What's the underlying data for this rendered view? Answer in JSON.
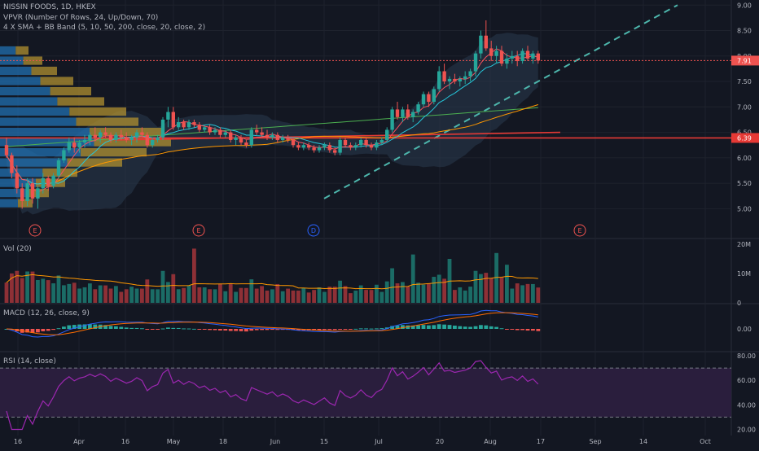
{
  "header": {
    "symbol_line": "NISSIN FOODS, 1D, HKEX",
    "vpvr_line": "VPVR (Number Of Rows, 24, Up/Down, 70)",
    "sma_bb_line": "4 X SMA + BB Band (5, 10, 50, 200, close, 20, close, 2)"
  },
  "colors": {
    "background": "#131722",
    "grid": "#1e222d",
    "up": "#26a69a",
    "down": "#ef5350",
    "vol_up": "#1b6c66",
    "vol_down": "#8e3036",
    "sma5": "#f7525f",
    "sma10": "#26c6da",
    "sma50": "#ff9800",
    "sma200": "#4caf50",
    "bb_fill": "#2a3a4f",
    "trendline": "#4db6ac",
    "support_line": "#e53935",
    "last_price_line": "#ef5350",
    "macd_line": "#2962ff",
    "signal_line": "#ff6d00",
    "rsi_line": "#9c27b0",
    "rsi_band": "#2a1e3d",
    "vpvr_up": "#2270b0",
    "vpvr_down": "#b09030"
  },
  "price_axis": {
    "ticks": [
      "9.00",
      "8.50",
      "8.00",
      "7.50",
      "7.00",
      "6.50",
      "6.00",
      "5.50",
      "5.00"
    ],
    "last_price_label": "7.91",
    "support_label": "6.39"
  },
  "time_axis": {
    "labels": [
      "16",
      "Apr",
      "16",
      "May",
      "18",
      "Jun",
      "15",
      "Jul",
      "20",
      "Aug",
      "17",
      "Sep",
      "14",
      "Oct"
    ]
  },
  "event_markers": [
    "E",
    "E",
    "D",
    "E"
  ],
  "panes": {
    "volume": {
      "title": "Vol (20)",
      "ticks": [
        "20M",
        "10M",
        "0"
      ]
    },
    "macd": {
      "title": "MACD (12, 26, close, 9)",
      "ticks": [
        "0.00"
      ]
    },
    "rsi": {
      "title": "RSI (14, close)",
      "ticks": [
        "80.00",
        "60.00",
        "40.00",
        "20.00"
      ]
    }
  },
  "chart_data": [
    {
      "type": "candlestick",
      "name": "NISSIN FOODS",
      "ylim": [
        4.75,
        9.1
      ],
      "y_ticks": [
        9.0,
        8.5,
        8.0,
        7.5,
        7.0,
        6.5,
        6.0,
        5.5,
        5.0
      ],
      "last_price": 7.91,
      "horizontal_support": 6.39,
      "x_start": "Mar 16",
      "x_end": "Aug 24",
      "candles": [
        [
          6.25,
          6.4,
          6.0,
          6.05
        ],
        [
          6.05,
          6.1,
          5.6,
          5.7
        ],
        [
          5.7,
          5.85,
          5.3,
          5.4
        ],
        [
          5.4,
          5.5,
          5.0,
          5.15
        ],
        [
          5.15,
          5.6,
          5.05,
          5.5
        ],
        [
          5.5,
          5.6,
          5.1,
          5.2
        ],
        [
          5.2,
          5.45,
          5.0,
          5.4
        ],
        [
          5.4,
          5.7,
          5.3,
          5.6
        ],
        [
          5.6,
          5.65,
          5.35,
          5.45
        ],
        [
          5.45,
          5.7,
          5.4,
          5.65
        ],
        [
          5.65,
          6.0,
          5.6,
          5.95
        ],
        [
          5.95,
          6.2,
          5.9,
          6.15
        ],
        [
          6.15,
          6.4,
          6.1,
          6.3
        ],
        [
          6.3,
          6.4,
          6.1,
          6.2
        ],
        [
          6.2,
          6.35,
          6.1,
          6.3
        ],
        [
          6.3,
          6.45,
          6.2,
          6.35
        ],
        [
          6.35,
          6.5,
          6.25,
          6.45
        ],
        [
          6.45,
          6.6,
          6.35,
          6.4
        ],
        [
          6.4,
          6.55,
          6.3,
          6.5
        ],
        [
          6.5,
          6.6,
          6.4,
          6.45
        ],
        [
          6.45,
          6.5,
          6.3,
          6.35
        ],
        [
          6.35,
          6.5,
          6.3,
          6.45
        ],
        [
          6.45,
          6.55,
          6.35,
          6.4
        ],
        [
          6.4,
          6.5,
          6.3,
          6.35
        ],
        [
          6.35,
          6.45,
          6.25,
          6.4
        ],
        [
          6.4,
          6.55,
          6.3,
          6.5
        ],
        [
          6.5,
          6.6,
          6.4,
          6.45
        ],
        [
          6.45,
          6.5,
          6.2,
          6.25
        ],
        [
          6.25,
          6.4,
          6.2,
          6.35
        ],
        [
          6.35,
          6.45,
          6.3,
          6.4
        ],
        [
          6.4,
          6.8,
          6.35,
          6.75
        ],
        [
          6.75,
          7.0,
          6.6,
          6.9
        ],
        [
          6.9,
          7.0,
          6.55,
          6.6
        ],
        [
          6.6,
          6.8,
          6.55,
          6.7
        ],
        [
          6.7,
          6.75,
          6.55,
          6.6
        ],
        [
          6.6,
          6.75,
          6.55,
          6.7
        ],
        [
          6.7,
          6.75,
          6.6,
          6.65
        ],
        [
          6.65,
          6.7,
          6.5,
          6.55
        ],
        [
          6.55,
          6.65,
          6.5,
          6.6
        ],
        [
          6.6,
          6.65,
          6.45,
          6.5
        ],
        [
          6.5,
          6.6,
          6.45,
          6.55
        ],
        [
          6.55,
          6.6,
          6.4,
          6.45
        ],
        [
          6.45,
          6.55,
          6.4,
          6.5
        ],
        [
          6.5,
          6.55,
          6.3,
          6.35
        ],
        [
          6.35,
          6.45,
          6.25,
          6.4
        ],
        [
          6.4,
          6.45,
          6.25,
          6.3
        ],
        [
          6.3,
          6.35,
          6.2,
          6.25
        ],
        [
          6.25,
          6.6,
          6.2,
          6.55
        ],
        [
          6.55,
          6.65,
          6.45,
          6.5
        ],
        [
          6.5,
          6.6,
          6.4,
          6.45
        ],
        [
          6.45,
          6.55,
          6.35,
          6.4
        ],
        [
          6.4,
          6.5,
          6.35,
          6.45
        ],
        [
          6.45,
          6.5,
          6.3,
          6.35
        ],
        [
          6.35,
          6.45,
          6.3,
          6.4
        ],
        [
          6.4,
          6.45,
          6.3,
          6.35
        ],
        [
          6.35,
          6.4,
          6.2,
          6.25
        ],
        [
          6.25,
          6.3,
          6.15,
          6.2
        ],
        [
          6.2,
          6.3,
          6.15,
          6.25
        ],
        [
          6.25,
          6.3,
          6.15,
          6.2
        ],
        [
          6.2,
          6.25,
          6.1,
          6.15
        ],
        [
          6.15,
          6.25,
          6.1,
          6.2
        ],
        [
          6.2,
          6.3,
          6.15,
          6.25
        ],
        [
          6.25,
          6.3,
          6.1,
          6.15
        ],
        [
          6.15,
          6.2,
          6.05,
          6.1
        ],
        [
          6.1,
          6.4,
          6.05,
          6.35
        ],
        [
          6.35,
          6.4,
          6.2,
          6.25
        ],
        [
          6.25,
          6.3,
          6.15,
          6.2
        ],
        [
          6.2,
          6.3,
          6.15,
          6.25
        ],
        [
          6.25,
          6.4,
          6.2,
          6.35
        ],
        [
          6.35,
          6.4,
          6.2,
          6.25
        ],
        [
          6.25,
          6.3,
          6.15,
          6.2
        ],
        [
          6.2,
          6.35,
          6.15,
          6.3
        ],
        [
          6.3,
          6.4,
          6.25,
          6.35
        ],
        [
          6.35,
          6.6,
          6.3,
          6.55
        ],
        [
          6.55,
          7.0,
          6.5,
          6.95
        ],
        [
          6.95,
          7.1,
          6.75,
          6.8
        ],
        [
          6.8,
          7.0,
          6.7,
          6.95
        ],
        [
          6.95,
          7.05,
          6.75,
          6.8
        ],
        [
          6.8,
          6.95,
          6.7,
          6.9
        ],
        [
          6.9,
          7.1,
          6.85,
          7.05
        ],
        [
          7.05,
          7.3,
          7.0,
          7.25
        ],
        [
          7.25,
          7.3,
          7.0,
          7.1
        ],
        [
          7.1,
          7.4,
          7.05,
          7.35
        ],
        [
          7.35,
          7.8,
          7.3,
          7.7
        ],
        [
          7.7,
          7.85,
          7.45,
          7.5
        ],
        [
          7.5,
          7.6,
          7.35,
          7.55
        ],
        [
          7.55,
          7.65,
          7.45,
          7.5
        ],
        [
          7.5,
          7.6,
          7.4,
          7.55
        ],
        [
          7.55,
          7.7,
          7.45,
          7.6
        ],
        [
          7.6,
          7.75,
          7.5,
          7.7
        ],
        [
          7.7,
          8.1,
          7.6,
          8.05
        ],
        [
          8.05,
          8.5,
          7.95,
          8.4
        ],
        [
          8.4,
          8.7,
          8.1,
          8.15
        ],
        [
          8.15,
          8.3,
          7.9,
          8.0
        ],
        [
          8.0,
          8.2,
          7.85,
          8.1
        ],
        [
          8.1,
          8.2,
          7.8,
          7.85
        ],
        [
          7.85,
          8.05,
          7.75,
          7.95
        ],
        [
          7.95,
          8.1,
          7.85,
          8.0
        ],
        [
          8.0,
          8.1,
          7.8,
          7.9
        ],
        [
          7.9,
          8.15,
          7.85,
          8.1
        ],
        [
          8.1,
          8.2,
          7.9,
          7.95
        ],
        [
          7.95,
          8.1,
          7.85,
          8.05
        ],
        [
          8.05,
          8.1,
          7.85,
          7.91
        ]
      ],
      "trendline": {
        "from": [
          5.2,
          5.55
        ],
        "to": [
          9.0,
          9.1
        ]
      }
    },
    {
      "type": "bar",
      "name": "Vol (20)",
      "ylim": [
        0,
        20000000
      ],
      "y_ticks": [
        0,
        10000000,
        20000000
      ]
    },
    {
      "type": "line",
      "name": "MACD (12, 26, close, 9)"
    },
    {
      "type": "line",
      "name": "RSI (14, close)",
      "ylim": [
        15,
        82
      ],
      "y_ticks": [
        80,
        60,
        40,
        20
      ],
      "bands": [
        30,
        70
      ]
    }
  ]
}
